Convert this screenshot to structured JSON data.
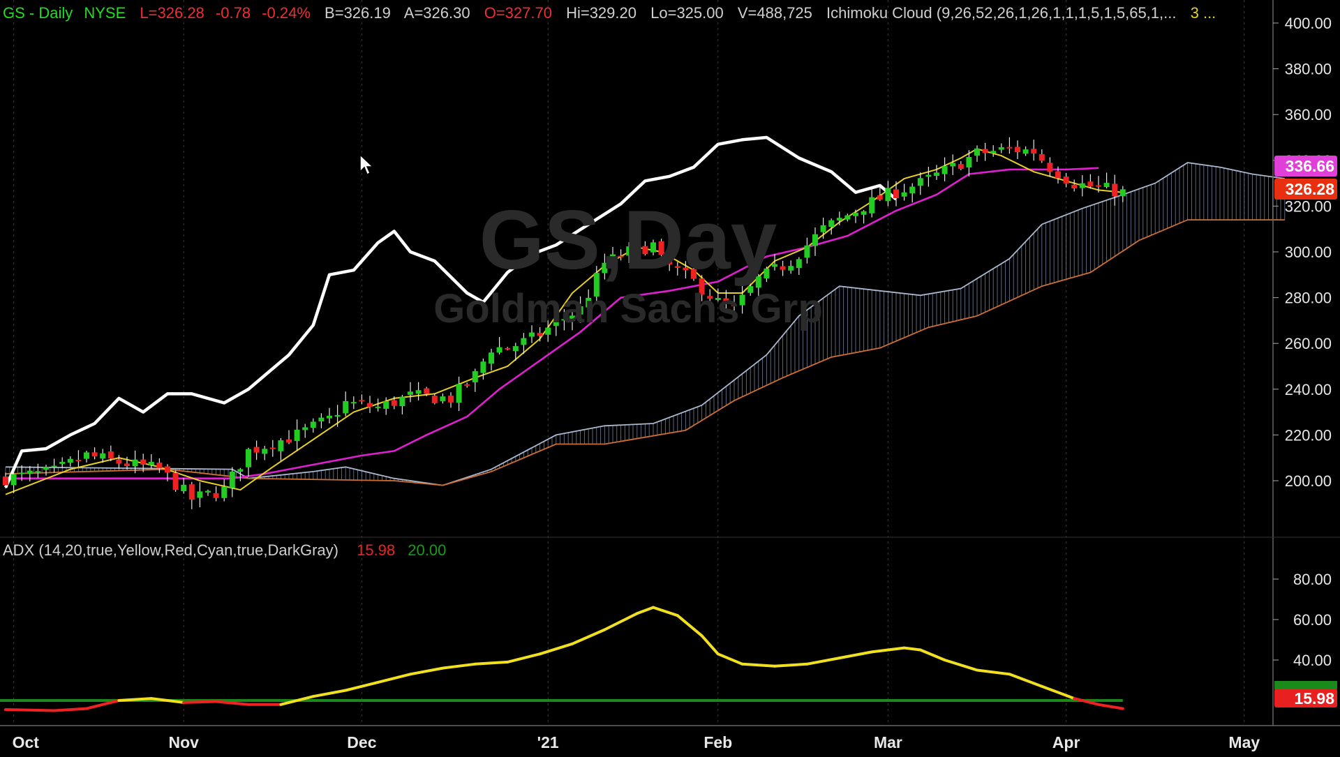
{
  "header": {
    "symbol": "GS - Daily",
    "exchange": "NYSE",
    "last": "L=326.28",
    "change": "-0.78",
    "change_pct": "-0.24%",
    "bid": "B=326.19",
    "ask": "A=326.30",
    "open": "O=327.70",
    "high": "Hi=329.20",
    "low": "Lo=325.00",
    "volume": "V=488,725",
    "indicator": "Ichimoku Cloud (9,26,52,26,1,26,1,1,1,5,1,5,65,1,...",
    "count": "3 ..."
  },
  "watermark": {
    "line1": "GS,Day",
    "line2": "Goldman Sachs Grp"
  },
  "adx_header": {
    "label": "ADX (14,20,true,Yellow,Red,Cyan,true,DarkGray)",
    "value": "15.98",
    "threshold": "20.00"
  },
  "price_badges": {
    "kijun": "336.66",
    "last": "326.28",
    "partial": "340.0"
  },
  "adx_badges": {
    "adx": "15.98",
    "threshold": "20.00"
  },
  "colors": {
    "up": "#22cc22",
    "down": "#ee2222",
    "tenkan": "#e8d020",
    "kijun": "#e020d0",
    "chikou": "#ffffff",
    "cloud_upper": "#aab8d0",
    "cloud_lower": "#d07030",
    "adx": "#f0e020",
    "adx_weak": "#ee2222",
    "threshold": "#1a8a1a",
    "kijun_badge": "#e040d8",
    "last_badge": "#e83010"
  },
  "chart_data": [
    {
      "type": "candlestick",
      "title": "GS - Daily NYSE",
      "y_ticks": [
        200,
        220,
        240,
        260,
        280,
        300,
        320,
        340,
        360,
        380,
        400
      ],
      "y_tick_labels": [
        "200.00",
        "220.00",
        "240.00",
        "260.00",
        "280.00",
        "300.00",
        "320.00",
        "340.00",
        "360.00",
        "380.00",
        "400.00"
      ],
      "ylim": [
        180,
        405
      ],
      "x_months": [
        "Oct",
        "Nov",
        "Dec",
        "'21",
        "Feb",
        "Mar",
        "Apr",
        "May"
      ],
      "price_path": [
        [
          0,
          201
        ],
        [
          6,
          204
        ],
        [
          10,
          211
        ],
        [
          14,
          208
        ],
        [
          19,
          205
        ],
        [
          23,
          192
        ],
        [
          27,
          196
        ],
        [
          30,
          213
        ],
        [
          36,
          220
        ],
        [
          40,
          227
        ],
        [
          42,
          234
        ],
        [
          46,
          232
        ],
        [
          50,
          237
        ],
        [
          55,
          236
        ],
        [
          58,
          246
        ],
        [
          60,
          258
        ],
        [
          62,
          258
        ],
        [
          65,
          262
        ],
        [
          69,
          271
        ],
        [
          71,
          275
        ],
        [
          74,
          295
        ],
        [
          77,
          300
        ],
        [
          80,
          303
        ],
        [
          81,
          296
        ],
        [
          85,
          287
        ],
        [
          88,
          278
        ],
        [
          90,
          275
        ],
        [
          93,
          288
        ],
        [
          97,
          296
        ],
        [
          101,
          310
        ],
        [
          104,
          316
        ],
        [
          106,
          320
        ],
        [
          109,
          325
        ],
        [
          113,
          330
        ],
        [
          117,
          337
        ],
        [
          120,
          343
        ],
        [
          124,
          345
        ],
        [
          127,
          344
        ],
        [
          129,
          337
        ],
        [
          132,
          330
        ],
        [
          135,
          328
        ],
        [
          138,
          326
        ]
      ],
      "ohlc_seed": "approximate, derived from price_path",
      "chikou": [
        [
          0,
          197
        ],
        [
          2,
          213
        ],
        [
          5,
          214
        ],
        [
          8,
          220
        ],
        [
          11,
          225
        ],
        [
          14,
          236
        ],
        [
          17,
          230
        ],
        [
          20,
          238
        ],
        [
          23,
          238
        ],
        [
          27,
          234
        ],
        [
          30,
          240
        ],
        [
          32,
          246
        ],
        [
          35,
          255
        ],
        [
          38,
          268
        ],
        [
          40,
          290
        ],
        [
          43,
          292
        ],
        [
          46,
          304
        ],
        [
          48,
          309
        ],
        [
          50,
          300
        ],
        [
          53,
          296
        ],
        [
          57,
          282
        ],
        [
          59,
          278
        ],
        [
          62,
          291
        ],
        [
          65,
          299
        ],
        [
          68,
          303
        ],
        [
          72,
          312
        ],
        [
          76,
          321
        ],
        [
          79,
          331
        ],
        [
          82,
          333
        ],
        [
          85,
          337
        ],
        [
          88,
          347
        ],
        [
          91,
          349
        ],
        [
          94,
          350
        ],
        [
          98,
          341
        ],
        [
          102,
          335
        ],
        [
          105,
          326
        ],
        [
          108,
          329
        ],
        [
          110,
          323
        ]
      ],
      "tenkan": [
        [
          0,
          194
        ],
        [
          8,
          205
        ],
        [
          14,
          210
        ],
        [
          19,
          206
        ],
        [
          24,
          200
        ],
        [
          29,
          196
        ],
        [
          33,
          206
        ],
        [
          38,
          218
        ],
        [
          43,
          230
        ],
        [
          48,
          236
        ],
        [
          53,
          238
        ],
        [
          58,
          245
        ],
        [
          62,
          250
        ],
        [
          66,
          262
        ],
        [
          70,
          282
        ],
        [
          74,
          294
        ],
        [
          78,
          302
        ],
        [
          81,
          300
        ],
        [
          85,
          292
        ],
        [
          88,
          282
        ],
        [
          91,
          282
        ],
        [
          95,
          296
        ],
        [
          99,
          302
        ],
        [
          103,
          313
        ],
        [
          107,
          322
        ],
        [
          111,
          332
        ],
        [
          115,
          336
        ],
        [
          118,
          341
        ],
        [
          120,
          345
        ],
        [
          123,
          342
        ],
        [
          127,
          335
        ],
        [
          131,
          331
        ],
        [
          135,
          327
        ],
        [
          138,
          326
        ]
      ],
      "kijun": [
        [
          0,
          201
        ],
        [
          20,
          201
        ],
        [
          28,
          201
        ],
        [
          32,
          203
        ],
        [
          38,
          207
        ],
        [
          44,
          211
        ],
        [
          48,
          213
        ],
        [
          52,
          220
        ],
        [
          57,
          228
        ],
        [
          61,
          240
        ],
        [
          65,
          250
        ],
        [
          71,
          265
        ],
        [
          76,
          280
        ],
        [
          82,
          283
        ],
        [
          88,
          287
        ],
        [
          94,
          298
        ],
        [
          99,
          302
        ],
        [
          104,
          307
        ],
        [
          110,
          318
        ],
        [
          115,
          325
        ],
        [
          119,
          334
        ],
        [
          124,
          336
        ],
        [
          131,
          336
        ],
        [
          135,
          336.66
        ]
      ],
      "cloud_upper": [
        [
          0,
          206
        ],
        [
          28,
          205
        ],
        [
          30,
          201
        ],
        [
          38,
          204
        ],
        [
          42,
          206
        ],
        [
          48,
          201
        ],
        [
          54,
          198
        ],
        [
          60,
          205
        ],
        [
          68,
          220
        ],
        [
          74,
          224
        ],
        [
          80,
          225
        ],
        [
          86,
          233
        ],
        [
          94,
          255
        ],
        [
          98,
          272
        ],
        [
          103,
          285
        ],
        [
          108,
          283
        ],
        [
          113,
          281
        ],
        [
          118,
          284
        ],
        [
          124,
          297
        ],
        [
          128,
          312
        ],
        [
          133,
          319
        ],
        [
          138,
          325
        ],
        [
          142,
          330
        ],
        [
          146,
          339
        ],
        [
          150,
          337
        ],
        [
          154,
          334
        ],
        [
          158,
          332
        ]
      ],
      "cloud_lower": [
        [
          0,
          203
        ],
        [
          20,
          205
        ],
        [
          30,
          201
        ],
        [
          48,
          200
        ],
        [
          54,
          198
        ],
        [
          60,
          204
        ],
        [
          68,
          216
        ],
        [
          74,
          216
        ],
        [
          84,
          222
        ],
        [
          90,
          235
        ],
        [
          96,
          245
        ],
        [
          102,
          254
        ],
        [
          108,
          258
        ],
        [
          114,
          267
        ],
        [
          120,
          272
        ],
        [
          128,
          285
        ],
        [
          134,
          291
        ],
        [
          140,
          305
        ],
        [
          146,
          314
        ],
        [
          158,
          314
        ]
      ]
    },
    {
      "type": "line",
      "title": "ADX (14,20,true,Yellow,Red,Cyan,true,DarkGray)",
      "y_ticks": [
        20,
        40,
        60,
        80
      ],
      "y_tick_labels": [
        "20.00",
        "40.00",
        "60.00",
        "80.00"
      ],
      "ylim": [
        10,
        85
      ],
      "threshold": 20,
      "series": [
        {
          "name": "ADX",
          "points": [
            [
              0,
              15.5
            ],
            [
              6,
              15
            ],
            [
              10,
              16
            ],
            [
              14,
              20
            ],
            [
              18,
              21
            ],
            [
              22,
              19
            ],
            [
              26,
              19.5
            ],
            [
              30,
              18
            ],
            [
              34,
              18
            ],
            [
              38,
              22
            ],
            [
              42,
              25
            ],
            [
              46,
              29
            ],
            [
              50,
              33
            ],
            [
              54,
              36
            ],
            [
              58,
              38
            ],
            [
              62,
              39
            ],
            [
              66,
              43
            ],
            [
              70,
              48
            ],
            [
              74,
              55
            ],
            [
              78,
              63
            ],
            [
              80,
              66
            ],
            [
              83,
              62
            ],
            [
              86,
              52
            ],
            [
              88,
              43
            ],
            [
              91,
              38
            ],
            [
              95,
              37
            ],
            [
              99,
              38
            ],
            [
              103,
              41
            ],
            [
              107,
              44
            ],
            [
              111,
              46
            ],
            [
              113,
              45
            ],
            [
              116,
              40
            ],
            [
              120,
              35
            ],
            [
              124,
              33
            ],
            [
              128,
              27
            ],
            [
              132,
              21
            ],
            [
              135,
              18
            ],
            [
              138,
              16
            ]
          ]
        }
      ]
    }
  ]
}
